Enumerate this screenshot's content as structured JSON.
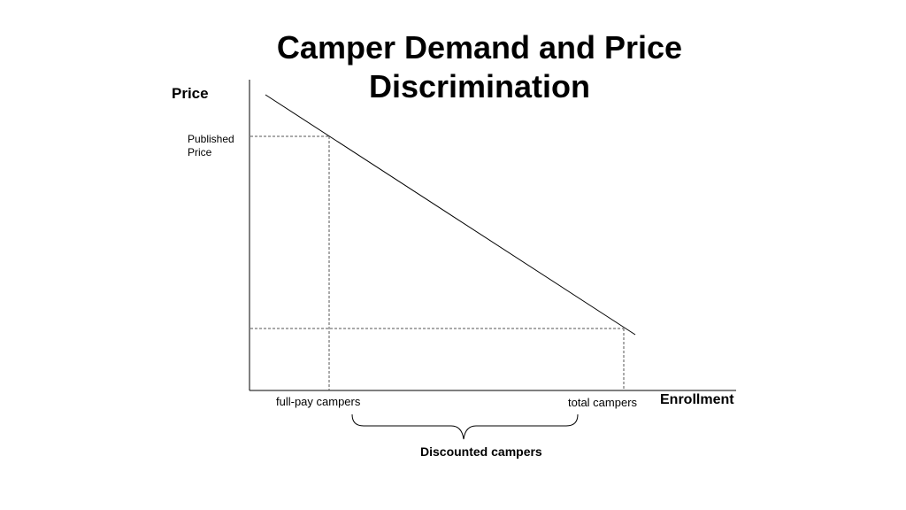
{
  "title": {
    "line1": "Camper Demand and Price",
    "line2": "Discrimination"
  },
  "axes": {
    "y_label": "Price",
    "x_label": "Enrollment"
  },
  "annotations": {
    "published_price_line1": "Published",
    "published_price_line2": "Price",
    "full_pay": "full-pay campers",
    "total": "total campers",
    "discounted": "Discounted campers"
  },
  "colors": {
    "line": "#000000",
    "dashed": "#555555"
  }
}
